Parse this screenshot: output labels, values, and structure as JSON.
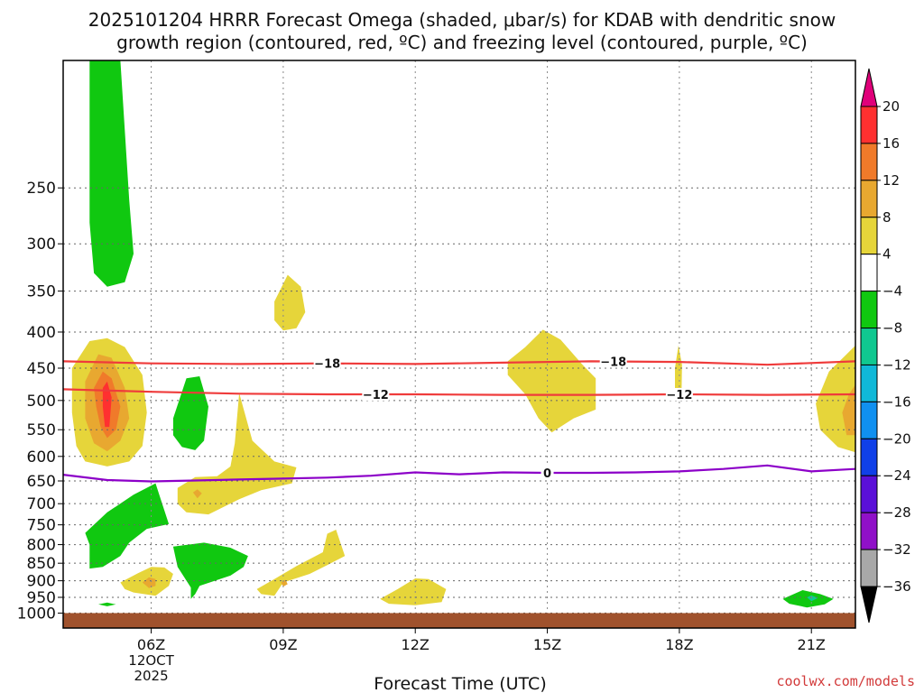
{
  "chart_data": {
    "type": "heatmap",
    "title_line1": "2025101204 HRRR Forecast Omega (shaded, μbar/s) for KDAB with dendritic snow",
    "title_line2": "growth region (contoured, red, ºC) and freezing level (contoured, purple, ºC)",
    "xlabel": "Forecast Time (UTC)",
    "ylabel": "",
    "watermark": "coolwx.com/models",
    "x_range_hours": [
      4.0,
      22.0
    ],
    "y_range_hpa": [
      165,
      1050
    ],
    "y_scale": "log",
    "grid": true,
    "x_ticks": [
      {
        "hour": 6,
        "label": "06Z",
        "sub1": "12OCT",
        "sub2": "2025"
      },
      {
        "hour": 9,
        "label": "09Z",
        "sub1": "",
        "sub2": ""
      },
      {
        "hour": 12,
        "label": "12Z",
        "sub1": "",
        "sub2": ""
      },
      {
        "hour": 15,
        "label": "15Z",
        "sub1": "",
        "sub2": ""
      },
      {
        "hour": 18,
        "label": "18Z",
        "sub1": "",
        "sub2": ""
      },
      {
        "hour": 21,
        "label": "21Z",
        "sub1": "",
        "sub2": ""
      }
    ],
    "y_ticks": [
      250,
      300,
      350,
      400,
      450,
      500,
      550,
      600,
      650,
      700,
      750,
      800,
      850,
      900,
      950,
      1000
    ],
    "ground_level_hpa": 1000,
    "colorbar": {
      "levels": [
        {
          "label": "20",
          "color": "#ff3030"
        },
        {
          "label": "16",
          "color": "#f07a2a"
        },
        {
          "label": "12",
          "color": "#e8a830"
        },
        {
          "label": "8",
          "color": "#e6d53a"
        },
        {
          "label": "4",
          "color": "#ffffff"
        },
        {
          "label": "−4",
          "color": "#10c810"
        },
        {
          "label": "−8",
          "color": "#10c890"
        },
        {
          "label": "−12",
          "color": "#10b8d8"
        },
        {
          "label": "−16",
          "color": "#1090f0"
        },
        {
          "label": "−20",
          "color": "#1040e8"
        },
        {
          "label": "−24",
          "color": "#5a10d8"
        },
        {
          "label": "−28",
          "color": "#9010c8"
        },
        {
          "label": "−32",
          "color": "#a8a8a8"
        },
        {
          "label": "−36",
          "color": "#000000"
        }
      ],
      "top_arrow_color": "#e0007a",
      "bottom_arrow_color": "#000000"
    },
    "contours": [
      {
        "name": "−18",
        "color": "#ef3b3b",
        "points": [
          [
            4.0,
            440
          ],
          [
            6.0,
            443
          ],
          [
            8.0,
            444
          ],
          [
            10.0,
            443
          ],
          [
            12.0,
            444
          ],
          [
            14.0,
            442
          ],
          [
            16.0,
            440
          ],
          [
            18.0,
            441
          ],
          [
            20.0,
            445
          ],
          [
            22.0,
            440
          ]
        ],
        "labels": [
          {
            "text": "−18",
            "hour": 10.0
          },
          {
            "text": "−18",
            "hour": 16.5
          }
        ]
      },
      {
        "name": "−12",
        "color": "#ef3b3b",
        "points": [
          [
            4.0,
            482
          ],
          [
            6.0,
            486
          ],
          [
            8.0,
            489
          ],
          [
            10.0,
            490
          ],
          [
            12.0,
            490
          ],
          [
            14.0,
            491
          ],
          [
            16.0,
            491
          ],
          [
            18.0,
            490
          ],
          [
            20.0,
            491
          ],
          [
            22.0,
            490
          ]
        ],
        "labels": [
          {
            "text": "−12",
            "hour": 11.1
          },
          {
            "text": "−12",
            "hour": 18.0
          }
        ]
      },
      {
        "name": "0",
        "color": "#8c00c8",
        "points": [
          [
            4.0,
            637
          ],
          [
            5.0,
            648
          ],
          [
            6.0,
            651
          ],
          [
            7.0,
            649
          ],
          [
            8.0,
            647
          ],
          [
            9.0,
            645
          ],
          [
            10.0,
            643
          ],
          [
            11.0,
            639
          ],
          [
            12.0,
            632
          ],
          [
            13.0,
            636
          ],
          [
            14.0,
            632
          ],
          [
            15.0,
            633
          ],
          [
            16.0,
            633
          ],
          [
            17.0,
            632
          ],
          [
            18.0,
            630
          ],
          [
            19.0,
            625
          ],
          [
            20.0,
            618
          ],
          [
            21.0,
            630
          ],
          [
            22.0,
            625
          ]
        ],
        "labels": [
          {
            "text": "0",
            "hour": 15.0
          }
        ]
      }
    ],
    "regions": [
      {
        "color": "#10c810",
        "points": [
          [
            4.6,
            165
          ],
          [
            5.3,
            165
          ],
          [
            5.5,
            260
          ],
          [
            5.6,
            310
          ],
          [
            5.4,
            340
          ],
          [
            5.0,
            345
          ],
          [
            4.7,
            330
          ],
          [
            4.6,
            280
          ]
        ]
      },
      {
        "color": "#e6d53a",
        "points": [
          [
            4.2,
            450
          ],
          [
            4.6,
            412
          ],
          [
            5.0,
            408
          ],
          [
            5.4,
            420
          ],
          [
            5.8,
            460
          ],
          [
            5.9,
            520
          ],
          [
            5.8,
            580
          ],
          [
            5.5,
            610
          ],
          [
            5.0,
            620
          ],
          [
            4.5,
            610
          ],
          [
            4.3,
            580
          ],
          [
            4.2,
            520
          ]
        ]
      },
      {
        "color": "#e8a830",
        "points": [
          [
            4.5,
            470
          ],
          [
            4.8,
            430
          ],
          [
            5.1,
            435
          ],
          [
            5.4,
            480
          ],
          [
            5.5,
            530
          ],
          [
            5.3,
            570
          ],
          [
            5.0,
            590
          ],
          [
            4.7,
            575
          ],
          [
            4.5,
            530
          ]
        ]
      },
      {
        "color": "#f07a2a",
        "points": [
          [
            4.7,
            480
          ],
          [
            4.9,
            455
          ],
          [
            5.1,
            465
          ],
          [
            5.3,
            510
          ],
          [
            5.2,
            550
          ],
          [
            5.0,
            565
          ],
          [
            4.85,
            545
          ],
          [
            4.75,
            510
          ]
        ]
      },
      {
        "color": "#ff3030",
        "points": [
          [
            4.9,
            480
          ],
          [
            5.0,
            470
          ],
          [
            5.1,
            495
          ],
          [
            5.05,
            545
          ],
          [
            4.95,
            545
          ],
          [
            4.9,
            510
          ]
        ]
      },
      {
        "color": "#10c810",
        "points": [
          [
            6.5,
            530
          ],
          [
            6.8,
            465
          ],
          [
            7.1,
            462
          ],
          [
            7.3,
            510
          ],
          [
            7.2,
            570
          ],
          [
            7.0,
            588
          ],
          [
            6.7,
            582
          ],
          [
            6.5,
            560
          ]
        ]
      },
      {
        "color": "#e6d53a",
        "points": [
          [
            6.6,
            665
          ],
          [
            7.0,
            642
          ],
          [
            7.5,
            640
          ],
          [
            7.8,
            620
          ],
          [
            7.9,
            575
          ],
          [
            8.0,
            488
          ],
          [
            8.3,
            570
          ],
          [
            8.8,
            610
          ],
          [
            9.3,
            622
          ],
          [
            9.2,
            655
          ],
          [
            8.5,
            670
          ],
          [
            8.0,
            690
          ],
          [
            7.3,
            725
          ],
          [
            6.8,
            720
          ],
          [
            6.6,
            700
          ]
        ]
      },
      {
        "color": "#e8a830",
        "points": [
          [
            6.95,
            675
          ],
          [
            7.05,
            668
          ],
          [
            7.15,
            677
          ],
          [
            7.05,
            688
          ]
        ]
      },
      {
        "color": "#e6d53a",
        "points": [
          [
            8.8,
            362
          ],
          [
            9.1,
            332
          ],
          [
            9.4,
            345
          ],
          [
            9.5,
            375
          ],
          [
            9.3,
            395
          ],
          [
            9.0,
            398
          ],
          [
            8.8,
            385
          ]
        ]
      },
      {
        "color": "#10c810",
        "points": [
          [
            4.5,
            770
          ],
          [
            5.0,
            720
          ],
          [
            5.6,
            680
          ],
          [
            6.1,
            655
          ],
          [
            6.2,
            685
          ],
          [
            6.4,
            748
          ],
          [
            5.9,
            760
          ],
          [
            5.5,
            795
          ],
          [
            5.3,
            830
          ],
          [
            4.9,
            860
          ],
          [
            4.6,
            865
          ],
          [
            4.6,
            800
          ]
        ]
      },
      {
        "color": "#10c810",
        "points": [
          [
            6.5,
            805
          ],
          [
            7.2,
            795
          ],
          [
            7.8,
            808
          ],
          [
            8.2,
            830
          ],
          [
            8.1,
            860
          ],
          [
            7.8,
            885
          ],
          [
            7.1,
            915
          ],
          [
            7.0,
            940
          ],
          [
            6.9,
            955
          ],
          [
            6.9,
            920
          ],
          [
            6.6,
            860
          ]
        ]
      },
      {
        "color": "#e6d53a",
        "points": [
          [
            5.3,
            905
          ],
          [
            5.7,
            878
          ],
          [
            6.0,
            860
          ],
          [
            6.3,
            862
          ],
          [
            6.5,
            880
          ],
          [
            6.4,
            915
          ],
          [
            6.1,
            945
          ],
          [
            5.6,
            935
          ],
          [
            5.4,
            925
          ]
        ]
      },
      {
        "color": "#e8a830",
        "points": [
          [
            5.8,
            905
          ],
          [
            5.95,
            890
          ],
          [
            6.1,
            895
          ],
          [
            6.1,
            915
          ],
          [
            5.95,
            922
          ]
        ]
      },
      {
        "color": "#e6d53a",
        "points": [
          [
            8.4,
            925
          ],
          [
            8.8,
            895
          ],
          [
            9.3,
            858
          ],
          [
            9.9,
            820
          ],
          [
            10.0,
            772
          ],
          [
            10.2,
            762
          ],
          [
            10.4,
            830
          ],
          [
            10.0,
            855
          ],
          [
            9.6,
            880
          ],
          [
            9.0,
            905
          ],
          [
            8.8,
            945
          ],
          [
            8.5,
            940
          ]
        ]
      },
      {
        "color": "#e8a830",
        "points": [
          [
            8.95,
            905
          ],
          [
            9.05,
            897
          ],
          [
            9.1,
            910
          ],
          [
            9.0,
            917
          ]
        ]
      },
      {
        "color": "#10c810",
        "points": [
          [
            4.8,
            972
          ],
          [
            5.0,
            966
          ],
          [
            5.2,
            972
          ],
          [
            5.0,
            978
          ]
        ]
      },
      {
        "color": "#e6d53a",
        "points": [
          [
            11.2,
            955
          ],
          [
            11.6,
            925
          ],
          [
            12.0,
            893
          ],
          [
            12.3,
            895
          ],
          [
            12.7,
            925
          ],
          [
            12.6,
            965
          ],
          [
            12.0,
            975
          ],
          [
            11.4,
            970
          ]
        ]
      },
      {
        "color": "#e6d53a",
        "points": [
          [
            14.1,
            440
          ],
          [
            14.5,
            420
          ],
          [
            14.9,
            397
          ],
          [
            15.3,
            410
          ],
          [
            15.8,
            445
          ],
          [
            16.1,
            465
          ],
          [
            16.1,
            515
          ],
          [
            15.6,
            530
          ],
          [
            15.1,
            555
          ],
          [
            14.8,
            530
          ],
          [
            14.5,
            490
          ],
          [
            14.1,
            460
          ]
        ]
      },
      {
        "color": "#e6d53a",
        "points": [
          [
            17.9,
            450
          ],
          [
            17.98,
            418
          ],
          [
            18.06,
            445
          ],
          [
            18.05,
            490
          ],
          [
            17.98,
            500
          ],
          [
            17.9,
            480
          ]
        ]
      },
      {
        "color": "#e6d53a",
        "points": [
          [
            21.1,
            505
          ],
          [
            21.4,
            455
          ],
          [
            21.8,
            430
          ],
          [
            22.0,
            418
          ],
          [
            22.0,
            592
          ],
          [
            21.6,
            582
          ],
          [
            21.2,
            550
          ]
        ]
      },
      {
        "color": "#e8a830",
        "points": [
          [
            21.7,
            520
          ],
          [
            21.85,
            490
          ],
          [
            22.0,
            475
          ],
          [
            22.0,
            560
          ],
          [
            21.8,
            560
          ]
        ]
      },
      {
        "color": "#10c810",
        "points": [
          [
            20.35,
            955
          ],
          [
            20.8,
            928
          ],
          [
            21.2,
            940
          ],
          [
            21.5,
            955
          ],
          [
            21.3,
            972
          ],
          [
            20.9,
            982
          ],
          [
            20.5,
            970
          ]
        ]
      },
      {
        "color": "#10c890",
        "points": [
          [
            20.9,
            950
          ],
          [
            21.0,
            944
          ],
          [
            21.15,
            952
          ],
          [
            21.0,
            962
          ]
        ]
      }
    ]
  }
}
